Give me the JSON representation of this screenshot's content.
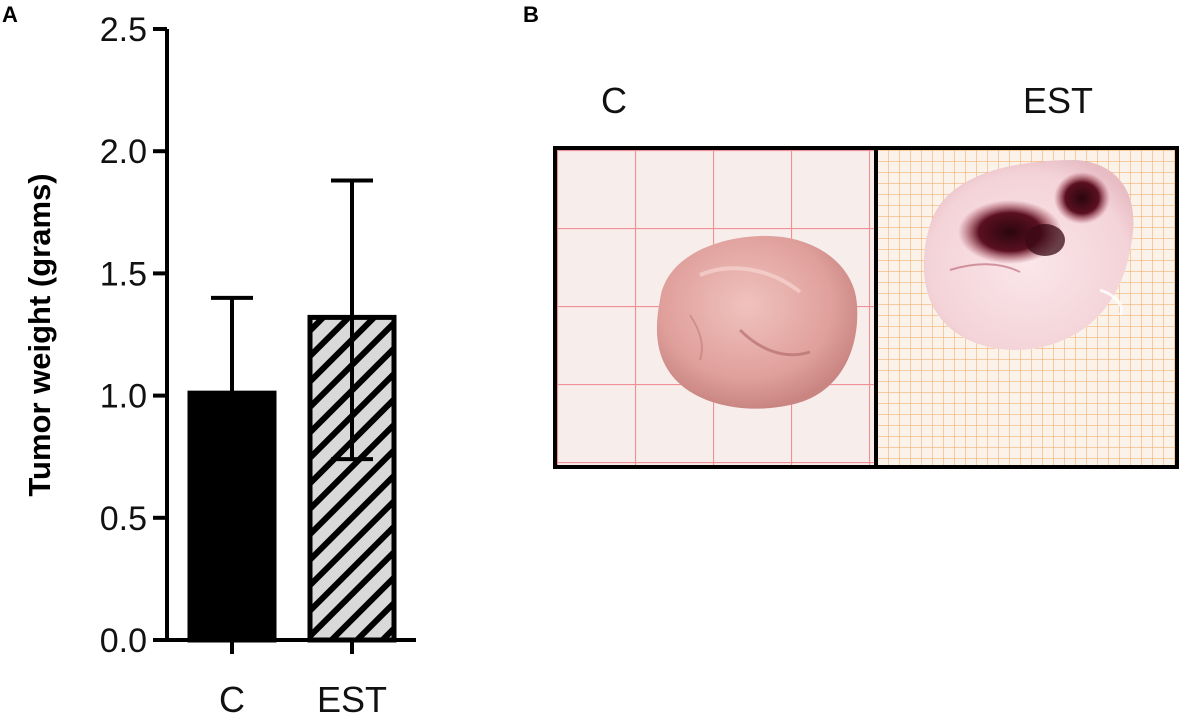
{
  "panel_a": {
    "letter": "A"
  },
  "panel_b": {
    "letter": "B",
    "photo_labels": [
      "C",
      "EST"
    ],
    "colors": {
      "frame": "#000000",
      "grid_left_bg": "#f7eeec",
      "grid_left_line": "#f08f95",
      "grid_right_bg": "#fbf3ea",
      "grid_right_line": "#f2a35a",
      "tumor_c": "#e0a09c",
      "tumor_est": "#f3d3d8",
      "hemorrhage": "#5b1020"
    },
    "icons": [
      "tumor-photo-control",
      "tumor-photo-est"
    ]
  },
  "chart_data": {
    "type": "bar",
    "title": "",
    "xlabel": "",
    "ylabel": "Tumor weight (grams)",
    "categories": [
      "C",
      "EST"
    ],
    "values": [
      1.01,
      1.32
    ],
    "error_upper": [
      1.4,
      1.88
    ],
    "error_lower": [
      null,
      0.74
    ],
    "ylim": [
      0,
      2.5
    ],
    "yticks": [
      "0.0",
      "0.5",
      "1.0",
      "1.5",
      "2.0",
      "2.5"
    ],
    "bar_fills": [
      "solid",
      "hatched"
    ],
    "colors": {
      "solid_bar": "#000000",
      "hatched_bar_bg": "#d9d9d9",
      "hatch_line": "#000000"
    },
    "grid": false,
    "legend": "none"
  }
}
